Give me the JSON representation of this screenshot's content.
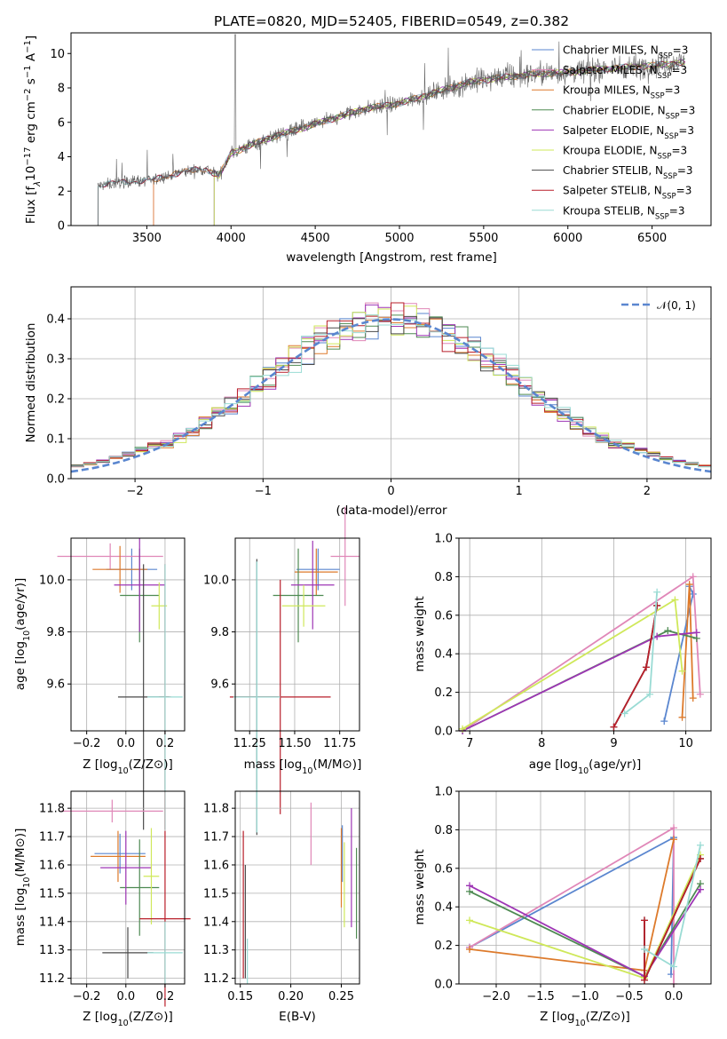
{
  "title": "PLATE=0820, MJD=52405, FIBERID=0549, z=0.382",
  "colors": {
    "Chabrier MILES": "#5a86cf",
    "Salpeter MILES": "#e087b8",
    "Kroupa MILES": "#dd7a2b",
    "Chabrier ELODIE": "#4e8a52",
    "Salpeter ELODIE": "#9e35b5",
    "Kroupa ELODIE": "#cfe85a",
    "Chabrier STELIB": "#4a4a4a",
    "Salpeter STELIB": "#b81f2a",
    "Kroupa STELIB": "#9adbd4"
  },
  "legend": [
    {
      "name": "Chabrier MILES"
    },
    {
      "name": "Salpeter MILES"
    },
    {
      "name": "Kroupa MILES"
    },
    {
      "name": "Chabrier ELODIE"
    },
    {
      "name": "Salpeter ELODIE"
    },
    {
      "name": "Kroupa ELODIE"
    },
    {
      "name": "Chabrier STELIB"
    },
    {
      "name": "Salpeter STELIB"
    },
    {
      "name": "Kroupa STELIB"
    }
  ],
  "legend_suffix": ", N",
  "legend_sub": "SSP",
  "legend_tail": "=3",
  "chart_data": [
    {
      "id": "spectrum",
      "type": "line",
      "xlabel": "wavelength [Angstrom, rest frame]",
      "ylabel": "Flux [f",
      "xlim": [
        3050,
        6850
      ],
      "ylim": [
        0,
        11.2
      ],
      "xticks": [
        3500,
        4000,
        4500,
        5000,
        5500,
        6000,
        6500
      ],
      "yticks": [
        0,
        2,
        4,
        6,
        8,
        10
      ],
      "wl_start": 3210,
      "wl_end": 6700,
      "continuum": [
        [
          3210,
          2.3
        ],
        [
          3400,
          2.6
        ],
        [
          3520,
          2.6
        ],
        [
          3700,
          3.1
        ],
        [
          3850,
          3.3
        ],
        [
          3930,
          2.9
        ],
        [
          4000,
          4.2
        ],
        [
          4200,
          5.0
        ],
        [
          4400,
          5.6
        ],
        [
          4600,
          6.2
        ],
        [
          4800,
          6.8
        ],
        [
          5000,
          7.1
        ],
        [
          5200,
          7.7
        ],
        [
          5400,
          8.3
        ],
        [
          5600,
          8.6
        ],
        [
          5800,
          8.8
        ],
        [
          6000,
          8.9
        ],
        [
          6200,
          9.1
        ],
        [
          6500,
          9.3
        ],
        [
          6700,
          9.5
        ]
      ],
      "model_starts": {
        "Salpeter MILES": 3540,
        "Kroupa MILES": 3540,
        "Kroupa ELODIE": 3900,
        "Chabrier ELODIE": 3900,
        "Salpeter ELODIE": 3900
      }
    },
    {
      "id": "residual_hist",
      "type": "histogram",
      "xlabel": "(data-model)/error",
      "ylabel": "Normed distribution",
      "xlim": [
        -2.5,
        2.5
      ],
      "ylim": [
        0,
        0.48
      ],
      "xticks": [
        -2,
        -1,
        0,
        1,
        2
      ],
      "yticks": [
        0.0,
        0.1,
        0.2,
        0.3,
        0.4
      ],
      "bin_width": 0.1,
      "legend": "𝒩(0, 1)"
    },
    {
      "id": "age_vs_Z",
      "type": "errorbar",
      "xlabel": "Z [log",
      "ylabel": "age  [log",
      "xlim": [
        -0.28,
        0.3
      ],
      "ylim": [
        9.42,
        10.16
      ],
      "xticks": [
        -0.2,
        0.0,
        0.2
      ],
      "yticks": [
        9.6,
        9.8,
        10.0
      ],
      "points": [
        {
          "series": "Chabrier MILES",
          "x": 0.03,
          "xerr": 0.13,
          "y": 10.04,
          "yerr": 0.08
        },
        {
          "series": "Salpeter MILES",
          "x": -0.08,
          "xerr": 0.27,
          "y": 10.09,
          "yerr": 0.05
        },
        {
          "series": "Kroupa MILES",
          "x": -0.03,
          "xerr": 0.14,
          "y": 10.04,
          "yerr": 0.09
        },
        {
          "series": "Chabrier ELODIE",
          "x": 0.07,
          "xerr": 0.1,
          "y": 9.94,
          "yerr": 0.18
        },
        {
          "series": "Salpeter ELODIE",
          "x": 0.07,
          "xerr": 0.13,
          "y": 9.98,
          "yerr": 0.18
        },
        {
          "series": "Kroupa ELODIE",
          "x": 0.17,
          "xerr": 0.04,
          "y": 9.9,
          "yerr": 0.09
        },
        {
          "series": "Chabrier STELIB",
          "x": 0.09,
          "xerr": 0.13,
          "y": 9.55,
          "yerr": 0.51
        },
        {
          "series": "Salpeter STELIB",
          "x": 0.2,
          "xerr": 0.03,
          "y": 9.55,
          "yerr": 0.51
        },
        {
          "series": "Kroupa STELIB",
          "x": 0.2,
          "xerr": 0.09,
          "y": 9.55,
          "yerr": 0.51
        }
      ]
    },
    {
      "id": "age_vs_mass",
      "type": "errorbar",
      "xlabel": "mass [log",
      "ylabel": "",
      "xlim": [
        11.17,
        11.86
      ],
      "ylim": [
        9.42,
        10.16
      ],
      "xticks": [
        11.25,
        11.5,
        11.75
      ],
      "yticks": [
        9.6,
        9.8,
        10.0
      ],
      "points": [
        {
          "series": "Chabrier MILES",
          "x": 11.63,
          "xerr": 0.12,
          "y": 10.04,
          "yerr": 0.08
        },
        {
          "series": "Salpeter MILES",
          "x": 11.78,
          "xerr": 0.08,
          "y": 10.09,
          "yerr": 0.19
        },
        {
          "series": "Kroupa MILES",
          "x": 11.62,
          "xerr": 0.12,
          "y": 10.03,
          "yerr": 0.09
        },
        {
          "series": "Chabrier ELODIE",
          "x": 11.52,
          "xerr": 0.14,
          "y": 9.94,
          "yerr": 0.18
        },
        {
          "series": "Salpeter ELODIE",
          "x": 11.6,
          "xerr": 0.12,
          "y": 9.98,
          "yerr": 0.17
        },
        {
          "series": "Kroupa ELODIE",
          "x": 11.55,
          "xerr": 0.12,
          "y": 9.9,
          "yerr": 0.08
        },
        {
          "series": "Chabrier STELIB",
          "x": 11.29,
          "xerr": 0.12,
          "y": 9.55,
          "yerr": 0.53
        },
        {
          "series": "Salpeter STELIB",
          "x": 11.42,
          "xerr": 0.28,
          "y": 9.55,
          "yerr": 0.45
        },
        {
          "series": "Kroupa STELIB",
          "x": 11.29,
          "xerr": 0.13,
          "y": 9.55,
          "yerr": 0.52
        }
      ]
    },
    {
      "id": "massweight_vs_age",
      "type": "line",
      "xlabel": "age  [log",
      "ylabel": "mass weight",
      "xlim": [
        6.85,
        10.35
      ],
      "ylim": [
        0,
        1.0
      ],
      "xticks": [
        7,
        8,
        9,
        10
      ],
      "yticks": [
        0.0,
        0.2,
        0.4,
        0.6,
        0.8,
        1.0
      ],
      "series": [
        {
          "name": "Chabrier MILES",
          "points": [
            [
              9.7,
              0.05
            ],
            [
              10.1,
              0.71
            ],
            [
              10.05,
              0.75
            ]
          ]
        },
        {
          "name": "Salpeter MILES",
          "points": [
            [
              6.9,
              0.0
            ],
            [
              10.1,
              0.8
            ],
            [
              10.2,
              0.19
            ]
          ]
        },
        {
          "name": "Kroupa MILES",
          "points": [
            [
              9.95,
              0.07
            ],
            [
              10.05,
              0.76
            ],
            [
              10.1,
              0.17
            ]
          ]
        },
        {
          "name": "Chabrier ELODIE",
          "points": [
            [
              6.9,
              0.0
            ],
            [
              9.75,
              0.52
            ],
            [
              10.15,
              0.48
            ]
          ]
        },
        {
          "name": "Salpeter ELODIE",
          "points": [
            [
              6.9,
              0.0
            ],
            [
              9.6,
              0.49
            ],
            [
              10.15,
              0.51
            ]
          ]
        },
        {
          "name": "Kroupa ELODIE",
          "points": [
            [
              6.9,
              0.01
            ],
            [
              9.85,
              0.68
            ],
            [
              9.95,
              0.31
            ]
          ]
        },
        {
          "name": "Chabrier STELIB",
          "points": [
            [
              9.0,
              0.02
            ],
            [
              9.45,
              0.33
            ],
            [
              9.6,
              0.65
            ]
          ]
        },
        {
          "name": "Salpeter STELIB",
          "points": [
            [
              9.0,
              0.02
            ],
            [
              9.45,
              0.33
            ],
            [
              9.6,
              0.65
            ]
          ]
        },
        {
          "name": "Kroupa STELIB",
          "points": [
            [
              9.15,
              0.09
            ],
            [
              9.5,
              0.19
            ],
            [
              9.6,
              0.72
            ]
          ]
        }
      ]
    },
    {
      "id": "mass_vs_Z",
      "type": "errorbar",
      "xlabel": "Z [log",
      "ylabel": "mass [log",
      "xlim": [
        -0.28,
        0.3
      ],
      "ylim": [
        11.18,
        11.86
      ],
      "xticks": [
        -0.2,
        0.0,
        0.2
      ],
      "yticks": [
        11.2,
        11.3,
        11.4,
        11.5,
        11.6,
        11.7,
        11.8
      ],
      "points": [
        {
          "series": "Chabrier MILES",
          "x": -0.03,
          "xerr": 0.13,
          "y": 11.64,
          "yerr": 0.07
        },
        {
          "series": "Salpeter MILES",
          "x": -0.07,
          "xerr": 0.26,
          "y": 11.79,
          "yerr": 0.04
        },
        {
          "series": "Kroupa MILES",
          "x": -0.04,
          "xerr": 0.14,
          "y": 11.63,
          "yerr": 0.09
        },
        {
          "series": "Chabrier ELODIE",
          "x": 0.07,
          "xerr": 0.1,
          "y": 11.52,
          "yerr": 0.17
        },
        {
          "series": "Salpeter ELODIE",
          "x": 0.0,
          "xerr": 0.13,
          "y": 11.59,
          "yerr": 0.13
        },
        {
          "series": "Kroupa ELODIE",
          "x": 0.13,
          "xerr": 0.04,
          "y": 11.56,
          "yerr": 0.17
        },
        {
          "series": "Chabrier STELIB",
          "x": 0.01,
          "xerr": 0.13,
          "y": 11.29,
          "yerr": 0.09
        },
        {
          "series": "Salpeter STELIB",
          "x": 0.2,
          "xerr": 0.13,
          "y": 11.41,
          "yerr": 0.31
        },
        {
          "series": "Kroupa STELIB",
          "x": 0.2,
          "xerr": 0.09,
          "y": 11.29,
          "yerr": 0.11
        }
      ]
    },
    {
      "id": "mass_vs_EBV",
      "type": "errorbar",
      "xlabel": "E(B-V)",
      "ylabel": "",
      "xlim": [
        0.145,
        0.268
      ],
      "ylim": [
        11.18,
        11.86
      ],
      "xticks": [
        0.15,
        0.2,
        0.25
      ],
      "yticks": [
        11.2,
        11.3,
        11.4,
        11.5,
        11.6,
        11.7,
        11.8
      ],
      "points": [
        {
          "series": "Chabrier MILES",
          "x": 0.251,
          "xerr": 0,
          "y": 11.64,
          "yerr": 0.1
        },
        {
          "series": "Salpeter MILES",
          "x": 0.22,
          "xerr": 0,
          "y": 11.71,
          "yerr": 0.11
        },
        {
          "series": "Kroupa MILES",
          "x": 0.25,
          "xerr": 0,
          "y": 11.59,
          "yerr": 0.14
        },
        {
          "series": "Chabrier ELODIE",
          "x": 0.265,
          "xerr": 0,
          "y": 11.5,
          "yerr": 0.16
        },
        {
          "series": "Salpeter ELODIE",
          "x": 0.26,
          "xerr": 0,
          "y": 11.59,
          "yerr": 0.21
        },
        {
          "series": "Kroupa ELODIE",
          "x": 0.253,
          "xerr": 0,
          "y": 11.53,
          "yerr": 0.15
        },
        {
          "series": "Chabrier STELIB",
          "x": 0.155,
          "xerr": 0,
          "y": 11.4,
          "yerr": 0.2
        },
        {
          "series": "Salpeter STELIB",
          "x": 0.153,
          "xerr": 0,
          "y": 11.46,
          "yerr": 0.26
        },
        {
          "series": "Kroupa STELIB",
          "x": 0.157,
          "xerr": 0,
          "y": 11.26,
          "yerr": 0.08
        }
      ]
    },
    {
      "id": "massweight_vs_Z",
      "type": "line",
      "xlabel": "Z [log",
      "ylabel": "mass weight",
      "xlim": [
        -2.42,
        0.42
      ],
      "ylim": [
        0,
        1.0
      ],
      "xticks": [
        -2.0,
        -1.5,
        -1.0,
        -0.5,
        0.0
      ],
      "yticks": [
        0.0,
        0.2,
        0.4,
        0.6,
        0.8,
        1.0
      ],
      "series": [
        {
          "name": "Chabrier MILES",
          "points": [
            [
              -2.3,
              0.19
            ],
            [
              0.0,
              0.76
            ],
            [
              -0.03,
              0.05
            ]
          ]
        },
        {
          "name": "Salpeter MILES",
          "points": [
            [
              -2.3,
              0.19
            ],
            [
              0.0,
              0.81
            ],
            [
              0.0,
              0.0
            ]
          ]
        },
        {
          "name": "Kroupa MILES",
          "points": [
            [
              -2.3,
              0.18
            ],
            [
              -0.33,
              0.07
            ],
            [
              0.0,
              0.75
            ]
          ]
        },
        {
          "name": "Chabrier ELODIE",
          "points": [
            [
              -2.3,
              0.48
            ],
            [
              -0.33,
              0.04
            ],
            [
              0.3,
              0.52
            ]
          ]
        },
        {
          "name": "Salpeter ELODIE",
          "points": [
            [
              -2.3,
              0.51
            ],
            [
              -0.33,
              0.04
            ],
            [
              0.3,
              0.49
            ]
          ]
        },
        {
          "name": "Kroupa ELODIE",
          "points": [
            [
              -2.3,
              0.33
            ],
            [
              -0.33,
              0.03
            ],
            [
              0.3,
              0.67
            ]
          ]
        },
        {
          "name": "Chabrier STELIB",
          "points": [
            [
              -0.33,
              0.33
            ],
            [
              -0.33,
              0.02
            ],
            [
              0.3,
              0.65
            ]
          ]
        },
        {
          "name": "Salpeter STELIB",
          "points": [
            [
              -0.33,
              0.33
            ],
            [
              -0.33,
              0.02
            ],
            [
              0.3,
              0.65
            ]
          ]
        },
        {
          "name": "Kroupa STELIB",
          "points": [
            [
              -0.33,
              0.18
            ],
            [
              0.0,
              0.09
            ],
            [
              0.3,
              0.72
            ]
          ]
        }
      ]
    }
  ]
}
